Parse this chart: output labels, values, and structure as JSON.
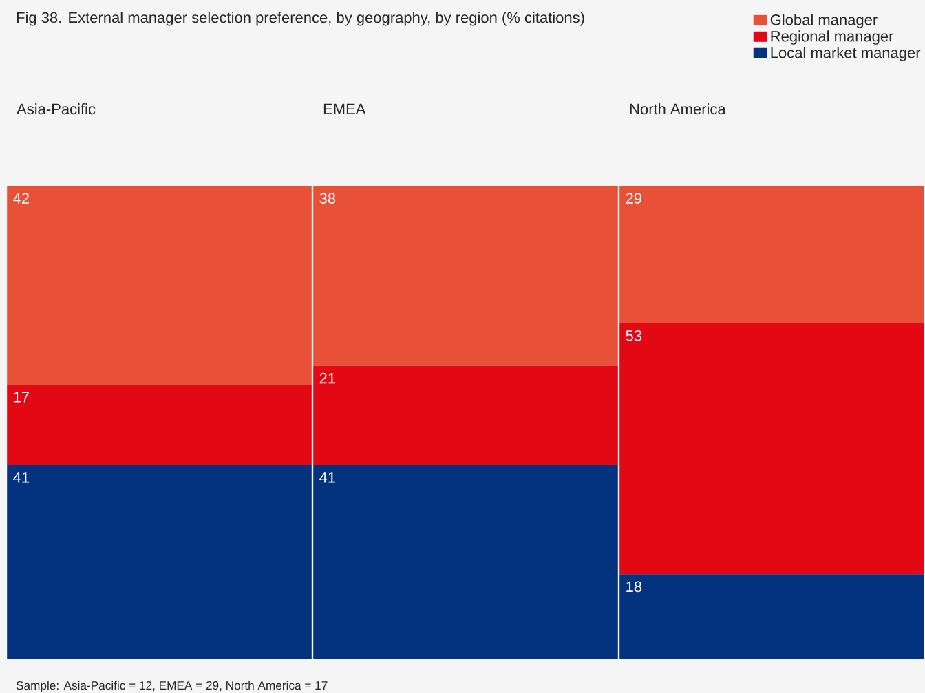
{
  "chart_data": {
    "type": "bar",
    "stacked": true,
    "title": "Fig 38. External manager selection preference, by geography, by region (% citations)",
    "categories": [
      "Asia-Pacific",
      "EMEA",
      "North America"
    ],
    "series": [
      {
        "name": "Local market manager",
        "color": "#03337f",
        "values": [
          41,
          41,
          18
        ]
      },
      {
        "name": "Regional manager",
        "color": "#e20814",
        "values": [
          17,
          21,
          53
        ]
      },
      {
        "name": "Global manager",
        "color": "#e85037",
        "values": [
          42,
          38,
          29
        ]
      }
    ],
    "data_labels": true,
    "legend": "top right",
    "annotations": [
      "Sample: Asia-Pacific = 12, EMEA = 29, North America = 17"
    ]
  }
}
